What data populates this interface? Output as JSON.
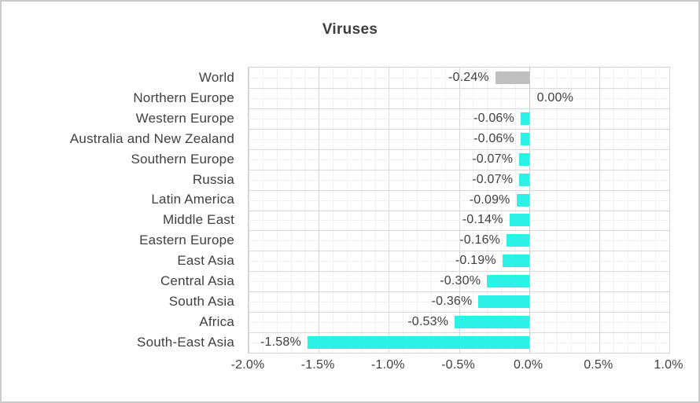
{
  "chart_data": {
    "type": "bar",
    "orientation": "horizontal",
    "title": "Viruses",
    "categories": [
      "World",
      "Northern Europe",
      "Western Europe",
      "Australia and New Zealand",
      "Southern Europe",
      "Russia",
      "Latin America",
      "Middle East",
      "Eastern Europe",
      "East Asia",
      "Central Asia",
      "South Asia",
      "Africa",
      "South-East Asia"
    ],
    "values": [
      -0.24,
      0.0,
      -0.06,
      -0.06,
      -0.07,
      -0.07,
      -0.09,
      -0.14,
      -0.16,
      -0.19,
      -0.3,
      -0.36,
      -0.53,
      -1.58
    ],
    "data_labels": [
      "-0.24%",
      "0.00%",
      "-0.06%",
      "-0.06%",
      "-0.07%",
      "-0.07%",
      "-0.09%",
      "-0.14%",
      "-0.16%",
      "-0.19%",
      "-0.30%",
      "-0.36%",
      "-0.53%",
      "-1.58%"
    ],
    "bar_colors": [
      "#bfbfbf",
      "#2bf2e5",
      "#2bf2e5",
      "#2bf2e5",
      "#2bf2e5",
      "#2bf2e5",
      "#2bf2e5",
      "#2bf2e5",
      "#2bf2e5",
      "#2bf2e5",
      "#2bf2e5",
      "#2bf2e5",
      "#2bf2e5",
      "#2bf2e5"
    ],
    "xlim": [
      -2.0,
      1.0
    ],
    "x_tick_values": [
      -2.0,
      -1.5,
      -1.0,
      -0.5,
      0.0,
      0.5,
      1.0
    ],
    "x_tick_labels": [
      "-2.0%",
      "-1.5%",
      "-1.0%",
      "-0.5%",
      "0.0%",
      "0.5%",
      "1.0%"
    ],
    "minor_tick_step": 0.1,
    "grid": "major and minor, both axes",
    "legend": "none",
    "colors": {
      "accent_bar": "#2bf2e5",
      "world_bar": "#bfbfbf",
      "text": "#3f3f3f",
      "grid_major": "#d9d9d9",
      "grid_minor": "#f1f1f1",
      "plot_border": "#d2d2d2",
      "canvas_border": "#cacaca"
    }
  }
}
